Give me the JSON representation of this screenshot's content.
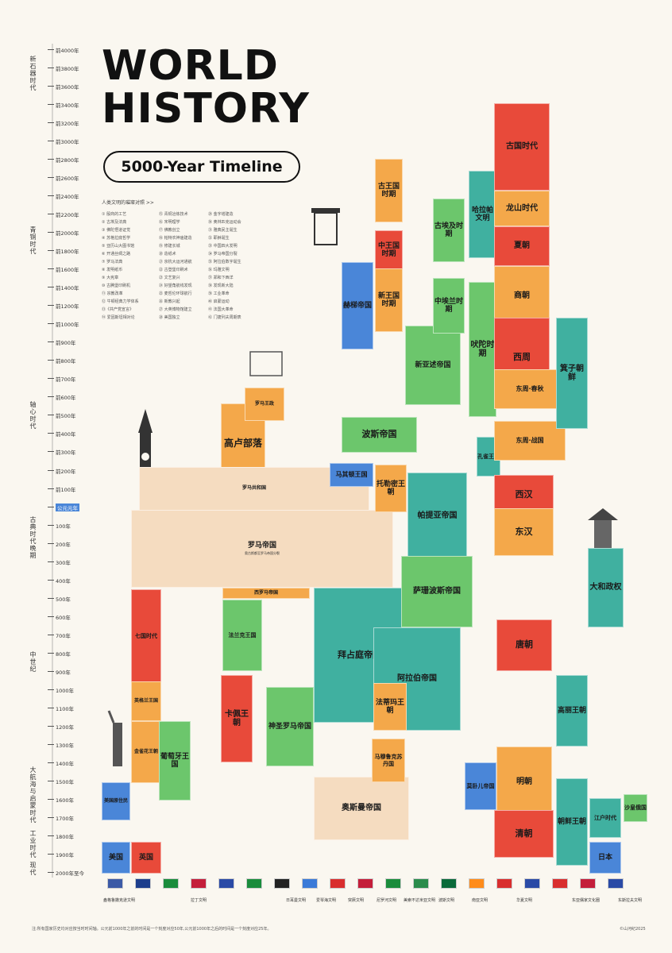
{
  "title": {
    "line1": "WORLD",
    "line2": "HISTORY",
    "subtitle": "5000-Year Timeline"
  },
  "legend": {
    "title": "人类文明的璀璨对照 >>",
    "items": [
      "① 殷商的工艺",
      "② 古埃及法典",
      "③ 佛陀悟道证觉",
      "④ 苏格拉底哲学",
      "⑤ 亚历山大图书馆",
      "⑥ 开通丝绸之路",
      "⑦ 罗马法典",
      "⑧ 发明纸币",
      "⑨ 大宪章",
      "⑩ 古腾堡印刷机",
      "⑪ 宗教改革",
      "⑫ 牛顿经典力学体系",
      "⑬《共产党宣言》",
      "⑭ 爱因斯坦相对论",
      "⑮ 青铜冶炼技术",
      "⑯ 宋明理学",
      "⑰ 佛教创立",
      "⑱ 帕特农神庙建造",
      "⑲ 修建长城",
      "⑳ 造纸术",
      "㉑ 京杭大运河通航",
      "㉒ 古登堡印刷术",
      "㉓ 文艺复兴",
      "㉔ 好望角航线发现",
      "㉕ 麦哲伦环球航行",
      "㉖ 新教兴起",
      "㉗ 大英博物馆建立",
      "㉘ 美国独立",
      "㉙ 金字塔建造",
      "㉚ 奥林匹克运动会",
      "㉛ 雅典民主诞生",
      "㉜ 耶稣诞生",
      "㉝ 中国四大发明",
      "㉞ 罗马帝国分裂",
      "㉟ 阿拉伯数字诞生",
      "㊱ 玛雅文明",
      "㊲ 郑和下西洋",
      "㊳ 发现新大陆",
      "㊴ 工业革命",
      "㊵ 启蒙运动",
      "㊶ 法国大革命",
      "㊷ 门捷列夫周期表"
    ]
  },
  "axis": {
    "ticks": [
      "前4000年",
      "前3800年",
      "前3600年",
      "前3400年",
      "前3200年",
      "前3000年",
      "前2800年",
      "前2600年",
      "前2400年",
      "前2200年",
      "前2000年",
      "前1800年",
      "前1600年",
      "前1400年",
      "前1200年",
      "前1000年",
      "前900年",
      "前800年",
      "前700年",
      "前600年",
      "前500年",
      "前400年",
      "前300年",
      "前200年",
      "前100年",
      "公元元年",
      "100年",
      "200年",
      "300年",
      "400年",
      "500年",
      "600年",
      "700年",
      "800年",
      "900年",
      "1000年",
      "1100年",
      "1200年",
      "1300年",
      "1400年",
      "1500年",
      "1600年",
      "1700年",
      "1800年",
      "1900年",
      "2000年至今"
    ],
    "eras": [
      "新石器时代",
      "青铜时代",
      "轴心时代",
      "古典时代晚期",
      "中世纪",
      "大航海与启蒙时代",
      "工业时代",
      "现代"
    ]
  },
  "blocks": [
    {
      "name": "高卢部落",
      "sub": "",
      "color": "#f4a84a"
    },
    {
      "name": "罗马王政",
      "sub": "",
      "color": "#f4a84a"
    },
    {
      "name": "罗马共和国",
      "sub": "",
      "color": "#f5dcc0"
    },
    {
      "name": "罗马帝国",
      "sub": "奥古斯都至罗马帝国分裂",
      "color": "#f5dcc0"
    },
    {
      "name": "西罗马帝国",
      "sub": "",
      "color": "#f4a84a"
    },
    {
      "name": "七国时代",
      "sub": "",
      "color": "#e84a3a"
    },
    {
      "name": "英格兰王国",
      "sub": "",
      "color": "#f4a84a"
    },
    {
      "name": "金雀花王朝",
      "sub": "",
      "color": "#f4a84a"
    },
    {
      "name": "英国",
      "sub": "",
      "color": "#e84a3a"
    },
    {
      "name": "美国",
      "sub": "",
      "color": "#4a86d8"
    },
    {
      "name": "美国原住民",
      "sub": "",
      "color": "#4a86d8"
    },
    {
      "name": "葡萄牙王国",
      "sub": "",
      "color": "#6cc66c"
    },
    {
      "name": "卡佩王朝",
      "sub": "",
      "color": "#e84a3a"
    },
    {
      "name": "法兰克王国",
      "sub": "",
      "color": "#6cc66c"
    },
    {
      "name": "神圣罗马帝国",
      "sub": "",
      "color": "#6cc66c"
    },
    {
      "name": "拜占庭帝国",
      "sub": "",
      "color": "#40b0a0"
    },
    {
      "name": "奥斯曼帝国",
      "sub": "",
      "color": "#f5dcc0"
    },
    {
      "name": "波斯帝国",
      "sub": "",
      "color": "#6cc66c"
    },
    {
      "name": "马其顿王国",
      "sub": "",
      "color": "#4a86d8"
    },
    {
      "name": "托勒密王朝",
      "sub": "",
      "color": "#f4a84a"
    },
    {
      "name": "帕提亚帝国",
      "sub": "",
      "color": "#40b0a0"
    },
    {
      "name": "萨珊波斯帝国",
      "sub": "",
      "color": "#6cc66c"
    },
    {
      "name": "阿拉伯帝国",
      "sub": "",
      "color": "#40b0a0"
    },
    {
      "name": "法蒂玛王朝",
      "sub": "",
      "color": "#f4a84a"
    },
    {
      "name": "马穆鲁克苏丹国",
      "sub": "",
      "color": "#f4a84a"
    },
    {
      "name": "赫梯帝国",
      "sub": "",
      "color": "#4a86d8"
    },
    {
      "name": "新亚述帝国",
      "sub": "",
      "color": "#6cc66c"
    },
    {
      "name": "古王国时期",
      "sub": "",
      "color": "#f4a84a"
    },
    {
      "name": "中王国时期",
      "sub": "",
      "color": "#e84a3a"
    },
    {
      "name": "新王国时期",
      "sub": "",
      "color": "#f4a84a"
    },
    {
      "name": "古埃及时期",
      "sub": "",
      "color": "#6cc66c"
    },
    {
      "name": "中埃兰时期",
      "sub": "",
      "color": "#6cc66c"
    },
    {
      "name": "哈拉帕文明",
      "sub": "",
      "color": "#40b0a0"
    },
    {
      "name": "吠陀时期",
      "sub": "",
      "color": "#6cc66c"
    },
    {
      "name": "孔雀王朝",
      "sub": "",
      "color": "#40b0a0"
    },
    {
      "name": "古国时代",
      "sub": "",
      "color": "#e84a3a"
    },
    {
      "name": "龙山时代",
      "sub": "",
      "color": "#f4a84a"
    },
    {
      "name": "夏朝",
      "sub": "",
      "color": "#e84a3a"
    },
    {
      "name": "商朝",
      "sub": "",
      "color": "#f4a84a"
    },
    {
      "name": "西周",
      "sub": "",
      "color": "#e84a3a"
    },
    {
      "name": "东周·春秋",
      "sub": "",
      "color": "#f4a84a"
    },
    {
      "name": "东周·战国",
      "sub": "",
      "color": "#f4a84a"
    },
    {
      "name": "西汉",
      "sub": "",
      "color": "#e84a3a"
    },
    {
      "name": "东汉",
      "sub": "",
      "color": "#f4a84a"
    },
    {
      "name": "唐朝",
      "sub": "",
      "color": "#e84a3a"
    },
    {
      "name": "明朝",
      "sub": "",
      "color": "#f4a84a"
    },
    {
      "name": "清朝",
      "sub": "",
      "color": "#e84a3a"
    },
    {
      "name": "箕子朝鲜",
      "sub": "",
      "color": "#40b0a0"
    },
    {
      "name": "高丽王朝",
      "sub": "",
      "color": "#40b0a0"
    },
    {
      "name": "朝鲜王朝",
      "sub": "",
      "color": "#40b0a0"
    },
    {
      "name": "大和政权",
      "sub": "",
      "color": "#40b0a0"
    },
    {
      "name": "江户时代",
      "sub": "",
      "color": "#40b0a0"
    },
    {
      "name": "日本",
      "sub": "",
      "color": "#4a86d8"
    },
    {
      "name": "莫卧儿帝国",
      "sub": "",
      "color": "#4a86d8"
    },
    {
      "name": "沙皇俄国",
      "sub": "",
      "color": "#6cc66c"
    }
  ],
  "civilizations": [
    "盎格鲁撒克逊文明",
    "拉丁文明",
    "日耳曼文明",
    "爱琴海文明",
    "突厥文明",
    "尼罗河文明",
    "美索不达米亚文明",
    "波斯文明",
    "南亚文明",
    "华夏文明",
    "东亚儒家文化圈",
    "东斯拉夫文明"
  ],
  "footnote": "注:所有国家历史均对应按当时时间轴。公元前1000年之前的时间是一个刻度对应50年,公元前1000年之后的时间是一个刻度对应25年。",
  "credit": "©山河纪2025",
  "colors": {
    "red": "#e84a3a",
    "orange": "#f4a84a",
    "green": "#6cc66c",
    "teal": "#40b0a0",
    "blue": "#4a86d8",
    "beige": "#f5dcc0"
  }
}
